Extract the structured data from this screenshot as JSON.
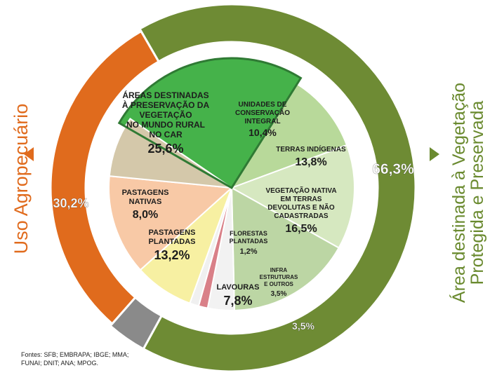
{
  "chart_data": {
    "type": "pie",
    "outer_ring": [
      {
        "name": "Área destinada à Vegetação Protegida e Preservada",
        "value": 66.3,
        "label": "66,3%",
        "color": "#6e8b34"
      },
      {
        "name": "Uso Agropecuário",
        "value": 30.2,
        "label": "30,2%",
        "color": "#e06b1d"
      },
      {
        "name": "",
        "value": 3.5,
        "label": "3,5%",
        "color": "#8a8a8a"
      }
    ],
    "inner_pie": [
      {
        "lines": [
          "ÁREAS DESTINADAS",
          "À PRESERVAÇÃO DA",
          "VEGETAÇÃO",
          "NO MUNDO RURAL",
          "NO CAR"
        ],
        "value_label": "25,6%",
        "value": 25.6,
        "color": "#45b24a"
      },
      {
        "lines": [
          "UNIDADES DE",
          "CONSERVAÇÃO",
          "INTEGRAL"
        ],
        "value_label": "10,4%",
        "value": 10.4,
        "color": "#b8d99a"
      },
      {
        "lines": [
          "TERRAS INDÍGENAS"
        ],
        "value_label": "13,8%",
        "value": 13.8,
        "color": "#d6e8c0"
      },
      {
        "lines": [
          "VEGETAÇÃO NATIVA",
          "EM TERRAS",
          "DEVOLUTAS E NÃO",
          "CADASTRADAS"
        ],
        "value_label": "16,5%",
        "value": 16.5,
        "color": "#bcd6a4"
      },
      {
        "lines": [
          "INFRA",
          "ESTRUTURAS",
          "E OUTROS"
        ],
        "value_label": "3,5%",
        "value": 3.5,
        "color": "#f2f2f2"
      },
      {
        "lines": [],
        "value_label": "",
        "value": 1.2,
        "color": "#d98088"
      },
      {
        "lines": [
          "FLORESTAS",
          "PLANTADAS"
        ],
        "value_label": "1,2%",
        "value": 1.2,
        "color": "#f0f0f0"
      },
      {
        "lines": [
          "LAVOURAS"
        ],
        "value_label": "7,8%",
        "value": 7.8,
        "color": "#f7f0a2"
      },
      {
        "lines": [
          "PASTAGENS",
          "PLANTADAS"
        ],
        "value_label": "13,2%",
        "value": 13.2,
        "color": "#f8c9a6"
      },
      {
        "lines": [
          "PASTAGENS",
          "NATIVAS"
        ],
        "value_label": "8,0%",
        "value": 8.0,
        "color": "#d4c8aa"
      }
    ],
    "left_label": "Uso Agropecuário",
    "right_label": [
      "Área destinada à Vegetação",
      "Protegida e Preservada"
    ]
  },
  "sources": [
    "Fontes: SFB; EMBRAPA; IBGE; MMA;",
    "FUNAI; DNIT; ANA; MPOG."
  ]
}
